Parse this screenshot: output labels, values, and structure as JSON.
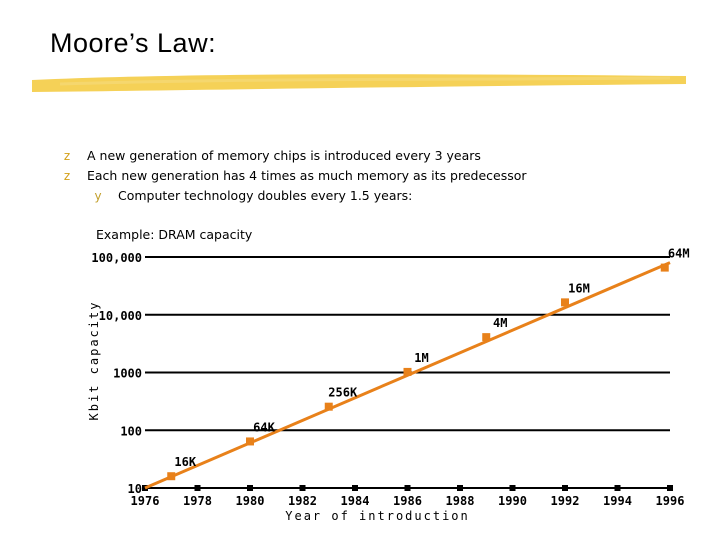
{
  "slide": {
    "title": "Moore’s Law:",
    "bullets": [
      {
        "marker": "z",
        "text": "A new generation of memory chips is introduced every 3 years"
      },
      {
        "marker": "z",
        "text": "Each new generation has 4 times as much memory as its predecessor"
      }
    ],
    "sub_bullets": [
      {
        "marker": "y",
        "text": "Computer technology doubles every 1.5 years:"
      }
    ],
    "example_caption": "Example: DRAM capacity"
  },
  "colors": {
    "accent": "#e8811a",
    "highlight": "#f3c93a",
    "gridline": "#000000"
  },
  "chart_data": {
    "type": "line",
    "xlabel": "Year of introduction",
    "ylabel": "Kbit capacity",
    "x_ticks": [
      "1976",
      "1978",
      "1980",
      "1982",
      "1984",
      "1986",
      "1988",
      "1990",
      "1992",
      "1994",
      "1996"
    ],
    "y_ticks": [
      "10",
      "100",
      "1000",
      "10,000",
      "100,000"
    ],
    "xlim": [
      1976,
      1996
    ],
    "ylim": [
      10,
      100000
    ],
    "y_scale": "log",
    "grid": "horizontal",
    "series": [
      {
        "points": [
          {
            "year": 1977,
            "kbit": 16,
            "label": "16K"
          },
          {
            "year": 1980,
            "kbit": 64,
            "label": "64K"
          },
          {
            "year": 1983,
            "kbit": 256,
            "label": "256K"
          },
          {
            "year": 1986,
            "kbit": 1024,
            "label": "1M"
          },
          {
            "year": 1989,
            "kbit": 4096,
            "label": "4M"
          },
          {
            "year": 1992,
            "kbit": 16384,
            "label": "16M"
          },
          {
            "year": 1995.8,
            "kbit": 65536,
            "label": "64M"
          }
        ]
      }
    ],
    "trend_line": {
      "from": [
        1976,
        10
      ],
      "to": [
        1996,
        80000
      ]
    }
  }
}
